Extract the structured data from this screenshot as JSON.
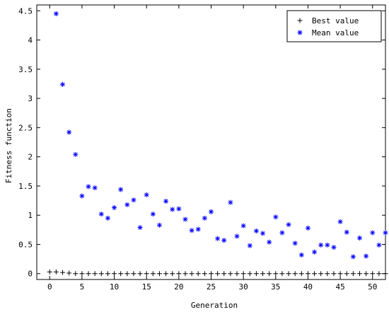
{
  "chart_data": {
    "type": "scatter",
    "xlabel": "Generation",
    "ylabel": "Fitness function",
    "xlim": [
      -2,
      52
    ],
    "ylim": [
      -0.1,
      4.6
    ],
    "xticks": [
      "0",
      "5",
      "10",
      "15",
      "20",
      "25",
      "30",
      "35",
      "40",
      "45",
      "50"
    ],
    "yticks": [
      "0",
      "0.5",
      "1",
      "1.5",
      "2",
      "2.5",
      "3",
      "3.5",
      "4",
      "4.5"
    ],
    "grid": false,
    "legend_position": "top-right",
    "series": [
      {
        "name": "Best value",
        "marker": "plus",
        "color": "#000000",
        "x": [
          0,
          1,
          2,
          3,
          4,
          5,
          6,
          7,
          8,
          9,
          10,
          11,
          12,
          13,
          14,
          15,
          16,
          17,
          18,
          19,
          20,
          21,
          22,
          23,
          24,
          25,
          26,
          27,
          28,
          29,
          30,
          31,
          32,
          33,
          34,
          35,
          36,
          37,
          38,
          39,
          40,
          41,
          42,
          43,
          44,
          45,
          46,
          47,
          48,
          49,
          50,
          51,
          52
        ],
        "values": [
          0.03,
          0.03,
          0.02,
          0.01,
          0,
          0,
          0,
          0,
          0,
          0,
          0,
          0,
          0,
          0,
          0,
          0,
          0,
          0,
          0,
          0,
          0,
          0,
          0,
          0,
          0,
          0,
          0,
          0,
          0,
          0,
          0,
          0,
          0,
          0,
          0,
          0,
          0,
          0,
          0,
          0,
          0,
          0,
          0,
          0,
          0,
          0,
          0,
          0,
          0,
          0,
          0,
          0,
          0
        ]
      },
      {
        "name": "Mean value",
        "marker": "asterisk",
        "color": "#0000ff",
        "x": [
          1,
          2,
          3,
          4,
          5,
          6,
          7,
          8,
          9,
          10,
          11,
          12,
          13,
          14,
          15,
          16,
          17,
          18,
          19,
          20,
          21,
          22,
          23,
          24,
          25,
          26,
          27,
          28,
          29,
          30,
          31,
          32,
          33,
          34,
          35,
          36,
          37,
          38,
          39,
          40,
          41,
          42,
          43,
          44,
          45,
          46,
          47,
          48,
          49,
          50,
          51,
          52
        ],
        "values": [
          4.45,
          3.24,
          2.42,
          2.04,
          1.33,
          1.49,
          1.47,
          1.02,
          0.95,
          1.13,
          1.44,
          1.18,
          1.26,
          0.79,
          1.35,
          1.02,
          0.83,
          1.24,
          1.1,
          1.11,
          0.93,
          0.74,
          0.76,
          0.95,
          1.06,
          0.6,
          0.57,
          1.22,
          0.64,
          0.82,
          0.48,
          0.73,
          0.69,
          0.54,
          0.97,
          0.7,
          0.84,
          0.52,
          0.32,
          0.78,
          0.37,
          0.49,
          0.49,
          0.45,
          0.89,
          0.71,
          0.29,
          0.61,
          0.3,
          0.7,
          0.49,
          0.7
        ]
      }
    ]
  }
}
